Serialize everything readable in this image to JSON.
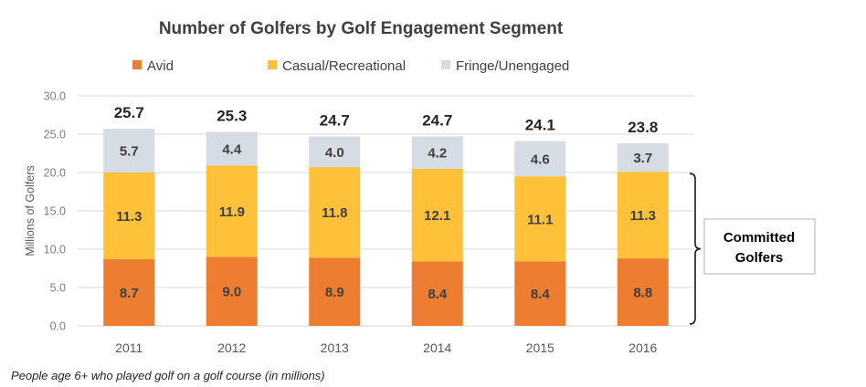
{
  "chart_data": {
    "type": "bar",
    "stacked": true,
    "title": "Number of Golfers by Golf Engagement Segment",
    "xlabel": "",
    "ylabel": "Millions of Golfers",
    "ylim": [
      0,
      30
    ],
    "yticks": [
      0,
      5,
      10,
      15,
      20,
      25,
      30
    ],
    "ytick_labels": [
      "0.0",
      "5.0",
      "10.0",
      "15.0",
      "20.0",
      "25.0",
      "30.0"
    ],
    "grid": true,
    "legend_position": "top",
    "categories": [
      "2011",
      "2012",
      "2013",
      "2014",
      "2015",
      "2016"
    ],
    "series": [
      {
        "name": "Avid",
        "color": "#ED7D31",
        "values": [
          8.7,
          9.0,
          8.9,
          8.4,
          8.4,
          8.8
        ],
        "labels": [
          "8.7",
          "9.0",
          "8.9",
          "8.4",
          "8.4",
          "8.8"
        ]
      },
      {
        "name": "Casual/Recreational",
        "color": "#FFC03A",
        "values": [
          11.3,
          11.9,
          11.8,
          12.1,
          11.1,
          11.3
        ],
        "labels": [
          "11.3",
          "11.9",
          "11.8",
          "12.1",
          "11.1",
          "11.3"
        ]
      },
      {
        "name": "Fringe/Unengaged",
        "color": "#D6DCE4",
        "values": [
          5.7,
          4.4,
          4.0,
          4.2,
          4.6,
          3.7
        ],
        "labels": [
          "5.7",
          "4.4",
          "4.0",
          "4.2",
          "4.6",
          "3.7"
        ]
      }
    ],
    "totals": [
      "25.7",
      "25.3",
      "24.7",
      "24.7",
      "24.1",
      "23.8"
    ],
    "annotation": {
      "text_lines": [
        "Committed",
        "Golfers"
      ],
      "spans_series": [
        "Avid",
        "Casual/Recreational"
      ]
    },
    "footnote": "People age 6+ who played golf on a golf course (in millions)"
  }
}
